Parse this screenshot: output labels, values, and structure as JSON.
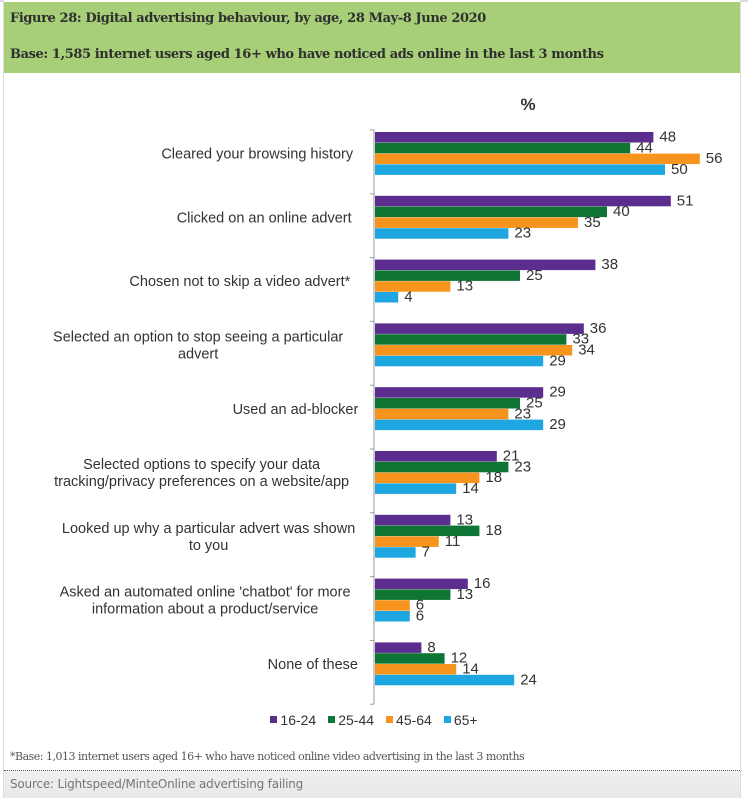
{
  "header": {
    "title": "Figure 28: Digital advertising behaviour, by age, 28 May-8 June 2020",
    "base": "Base: 1,585 internet users aged 16+ who have noticed ads online in the last 3 months"
  },
  "footnote": "*Base: 1,013 internet users aged 16+ who have noticed online video advertising in the last 3 months",
  "source": "Source: Lightspeed/MinteOnline advertising failing",
  "chart_data": {
    "type": "bar",
    "orientation": "horizontal",
    "title": "Digital advertising behaviour, by age, 28 May-8 June 2020",
    "unit_label": "%",
    "xlabel": "%",
    "ylabel": "",
    "xlim": [
      0,
      60
    ],
    "grid": false,
    "legend_position": "bottom",
    "categories": [
      [
        "Cleared your browsing history"
      ],
      [
        "Clicked on an online advert"
      ],
      [
        "Chosen not to skip a video advert*"
      ],
      [
        "Selected an option to stop seeing a particular",
        "advert"
      ],
      [
        "Used an ad-blocker"
      ],
      [
        "Selected options to specify your data",
        "tracking/privacy preferences on a website/app"
      ],
      [
        "Looked up why a particular advert was shown",
        "to you"
      ],
      [
        "Asked an automated online 'chatbot' for more",
        "information about a product/service"
      ],
      [
        "None of these"
      ]
    ],
    "series": [
      {
        "name": "16-24",
        "color": "#5b2d8e",
        "values": [
          48,
          51,
          38,
          36,
          29,
          21,
          13,
          16,
          8
        ]
      },
      {
        "name": "25-44",
        "color": "#0f7535",
        "values": [
          44,
          40,
          25,
          33,
          25,
          23,
          18,
          13,
          12
        ]
      },
      {
        "name": "45-64",
        "color": "#f7941d",
        "values": [
          56,
          35,
          13,
          34,
          23,
          18,
          11,
          6,
          14
        ]
      },
      {
        "name": "65+",
        "color": "#1ea6e0",
        "values": [
          50,
          23,
          4,
          29,
          29,
          14,
          7,
          6,
          24
        ]
      }
    ]
  }
}
